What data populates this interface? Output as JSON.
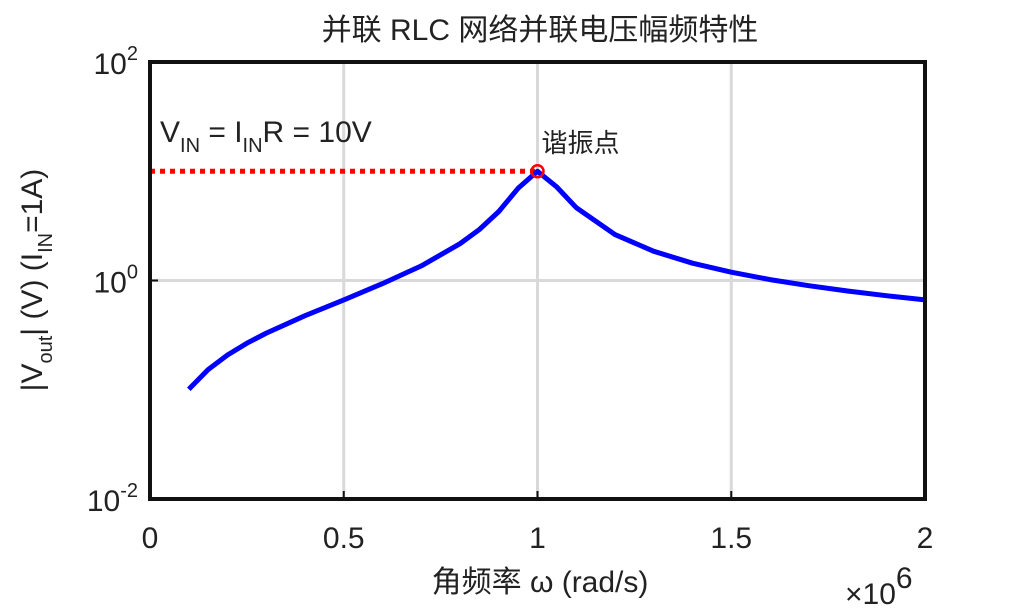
{
  "chart_data": {
    "type": "line",
    "title": "并联 RLC 网络并联电压幅频特性",
    "x_label": "角频率 ω (rad/s)",
    "x_scale_label": {
      "base": "×10",
      "exponent": "6"
    },
    "y_label": [
      {
        "text": "|V"
      },
      {
        "text": "out",
        "sub": true
      },
      {
        "text": "| (V)  (I"
      },
      {
        "text": "IN",
        "sub": true
      },
      {
        "text": "=1A)"
      }
    ],
    "annotation": [
      {
        "text": "V"
      },
      {
        "text": "IN",
        "sub": true
      },
      {
        "text": " = I"
      },
      {
        "text": "IN",
        "sub": true
      },
      {
        "text": "R = 10V"
      }
    ],
    "x": [
      0.1,
      0.15,
      0.2,
      0.25,
      0.3,
      0.4,
      0.5,
      0.6,
      0.7,
      0.8,
      0.85,
      0.9,
      0.95,
      1.0,
      1.05,
      1.1,
      1.2,
      1.3,
      1.4,
      1.5,
      1.6,
      1.7,
      1.8,
      1.9,
      2.0
    ],
    "series": [
      {
        "color": "#0000ff",
        "values": [
          0.101,
          0.153,
          0.208,
          0.267,
          0.33,
          0.476,
          0.665,
          0.937,
          1.36,
          2.17,
          2.93,
          4.28,
          6.98,
          10,
          7.16,
          4.64,
          2.63,
          1.85,
          1.44,
          1.19,
          1.02,
          0.896,
          0.801,
          0.726,
          0.665
        ]
      }
    ],
    "reference": {
      "value": 10,
      "x_end": 1,
      "color": "#ff0000"
    },
    "marker": {
      "x": 1,
      "value": 10,
      "label": "谐振点",
      "color": "#ff0000"
    },
    "xlim": [
      0,
      2
    ],
    "xticks": [
      0,
      0.5,
      1,
      1.5,
      2
    ],
    "ylim": [
      0.01,
      100
    ],
    "yticks": [
      {
        "value": 0.01,
        "label": "10",
        "exponent": "-2"
      },
      {
        "value": 1,
        "label": "10",
        "exponent": "0"
      },
      {
        "value": 100,
        "label": "10",
        "exponent": "2"
      }
    ],
    "log_y": true,
    "grid": true
  }
}
